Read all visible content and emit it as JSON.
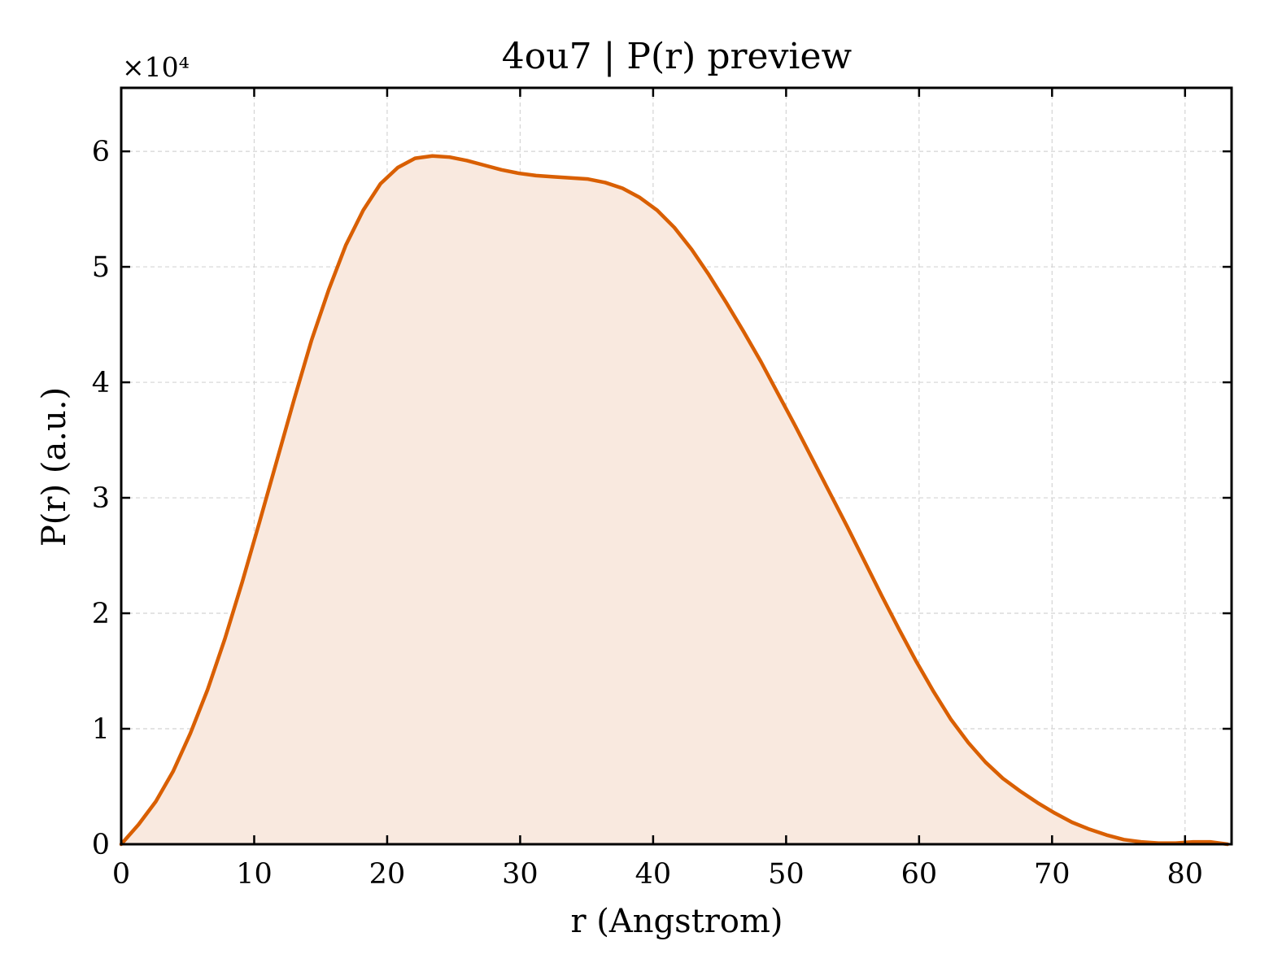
{
  "chart_data": {
    "type": "area",
    "title": "4ou7 | P(r) preview",
    "xlabel": "r (Angstrom)",
    "ylabel": "P(r) (a.u.)",
    "y_scale_label": "×10⁴",
    "xlim": [
      0,
      83.5
    ],
    "ylim": [
      0,
      65500
    ],
    "xticks": [
      0,
      10,
      20,
      30,
      40,
      50,
      60,
      70,
      80
    ],
    "xtick_labels": [
      "0",
      "10",
      "20",
      "30",
      "40",
      "50",
      "60",
      "70",
      "80"
    ],
    "yticks": [
      0,
      10000,
      20000,
      30000,
      40000,
      50000,
      60000
    ],
    "ytick_labels": [
      "0",
      "1",
      "2",
      "3",
      "4",
      "5",
      "6"
    ],
    "grid": true,
    "line_color": "#d95f02",
    "fill_color": "#f9e9df",
    "series": [
      {
        "x": [
          0,
          1.3,
          2.6,
          3.9,
          5.2,
          6.5,
          7.8,
          9.1,
          10.4,
          11.7,
          13.0,
          14.3,
          15.6,
          16.9,
          18.2,
          19.5,
          20.8,
          22.1,
          23.4,
          24.7,
          26.0,
          27.3,
          28.6,
          29.9,
          31.2,
          32.5,
          33.8,
          35.1,
          36.4,
          37.7,
          39.0,
          40.3,
          41.6,
          42.9,
          44.2,
          45.5,
          46.8,
          48.1,
          49.4,
          50.7,
          52.0,
          53.3,
          54.6,
          55.9,
          57.2,
          58.5,
          59.8,
          61.1,
          62.4,
          63.7,
          65.0,
          66.3,
          67.6,
          68.9,
          70.2,
          71.5,
          72.8,
          74.1,
          75.4,
          76.7,
          78.0,
          79.3,
          80.6,
          81.9,
          83.2
        ],
        "y": [
          0,
          1700,
          3700,
          6300,
          9600,
          13400,
          17800,
          22700,
          27900,
          33200,
          38500,
          43600,
          48000,
          51900,
          54900,
          57200,
          58600,
          59400,
          59600,
          59500,
          59200,
          58800,
          58400,
          58100,
          57900,
          57800,
          57700,
          57600,
          57300,
          56800,
          56000,
          54900,
          53400,
          51500,
          49300,
          46900,
          44400,
          41800,
          39000,
          36200,
          33300,
          30400,
          27500,
          24500,
          21500,
          18600,
          15800,
          13200,
          10800,
          8800,
          7100,
          5700,
          4600,
          3600,
          2700,
          1900,
          1300,
          800,
          400,
          200,
          100,
          100,
          200,
          200,
          0
        ]
      }
    ]
  }
}
